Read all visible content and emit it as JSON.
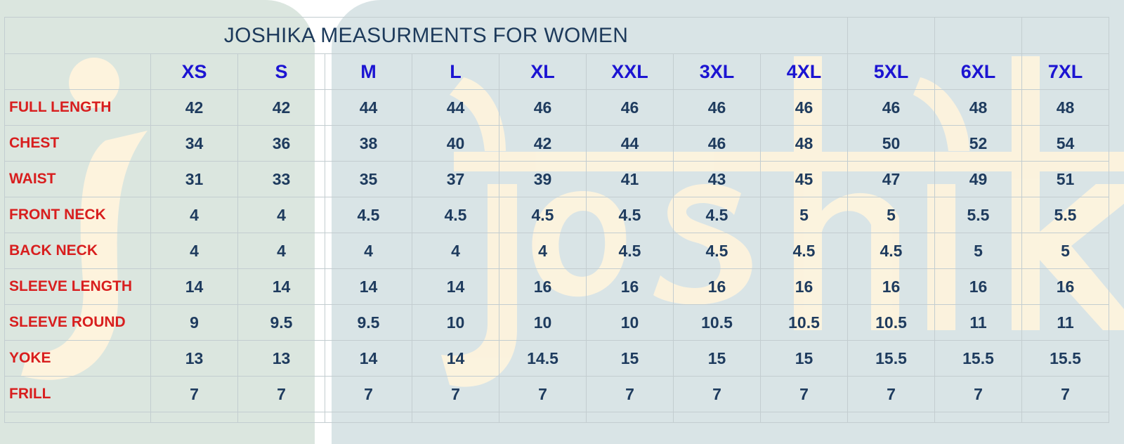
{
  "title": "JOSHIKA MEASURMENTS FOR WOMEN",
  "watermark_text": "joshika",
  "colors": {
    "title": "#1d3a5b",
    "size_header": "#1c14d2",
    "row_label": "#d81e1e",
    "value": "#1e3b5e",
    "background_left": "#dbe6df",
    "background_right": "#d9e4e6",
    "watermark": "#fdf3dd"
  },
  "sizes": [
    "XS",
    "S",
    "M",
    "L",
    "XL",
    "XXL",
    "3XL",
    "4XL",
    "5XL",
    "6XL",
    "7XL"
  ],
  "rows": [
    {
      "label": "FULL LENGTH",
      "values": [
        "42",
        "42",
        "44",
        "44",
        "46",
        "46",
        "46",
        "46",
        "46",
        "48",
        "48"
      ]
    },
    {
      "label": "CHEST",
      "values": [
        "34",
        "36",
        "38",
        "40",
        "42",
        "44",
        "46",
        "48",
        "50",
        "52",
        "54"
      ]
    },
    {
      "label": "WAIST",
      "values": [
        "31",
        "33",
        "35",
        "37",
        "39",
        "41",
        "43",
        "45",
        "47",
        "49",
        "51"
      ]
    },
    {
      "label": "FRONT NECK",
      "values": [
        "4",
        "4",
        "4.5",
        "4.5",
        "4.5",
        "4.5",
        "4.5",
        "5",
        "5",
        "5.5",
        "5.5"
      ]
    },
    {
      "label": "BACK NECK",
      "values": [
        "4",
        "4",
        "4",
        "4",
        "4",
        "4.5",
        "4.5",
        "4.5",
        "4.5",
        "5",
        "5"
      ]
    },
    {
      "label": "SLEEVE LENGTH",
      "values": [
        "14",
        "14",
        "14",
        "14",
        "16",
        "16",
        "16",
        "16",
        "16",
        "16",
        "16"
      ]
    },
    {
      "label": "SLEEVE ROUND",
      "values": [
        "9",
        "9.5",
        "9.5",
        "10",
        "10",
        "10",
        "10.5",
        "10.5",
        "10.5",
        "11",
        "11"
      ]
    },
    {
      "label": "YOKE",
      "values": [
        "13",
        "13",
        "14",
        "14",
        "14.5",
        "15",
        "15",
        "15",
        "15.5",
        "15.5",
        "15.5"
      ]
    },
    {
      "label": "FRILL",
      "values": [
        "7",
        "7",
        "7",
        "7",
        "7",
        "7",
        "7",
        "7",
        "7",
        "7",
        "7"
      ]
    }
  ]
}
